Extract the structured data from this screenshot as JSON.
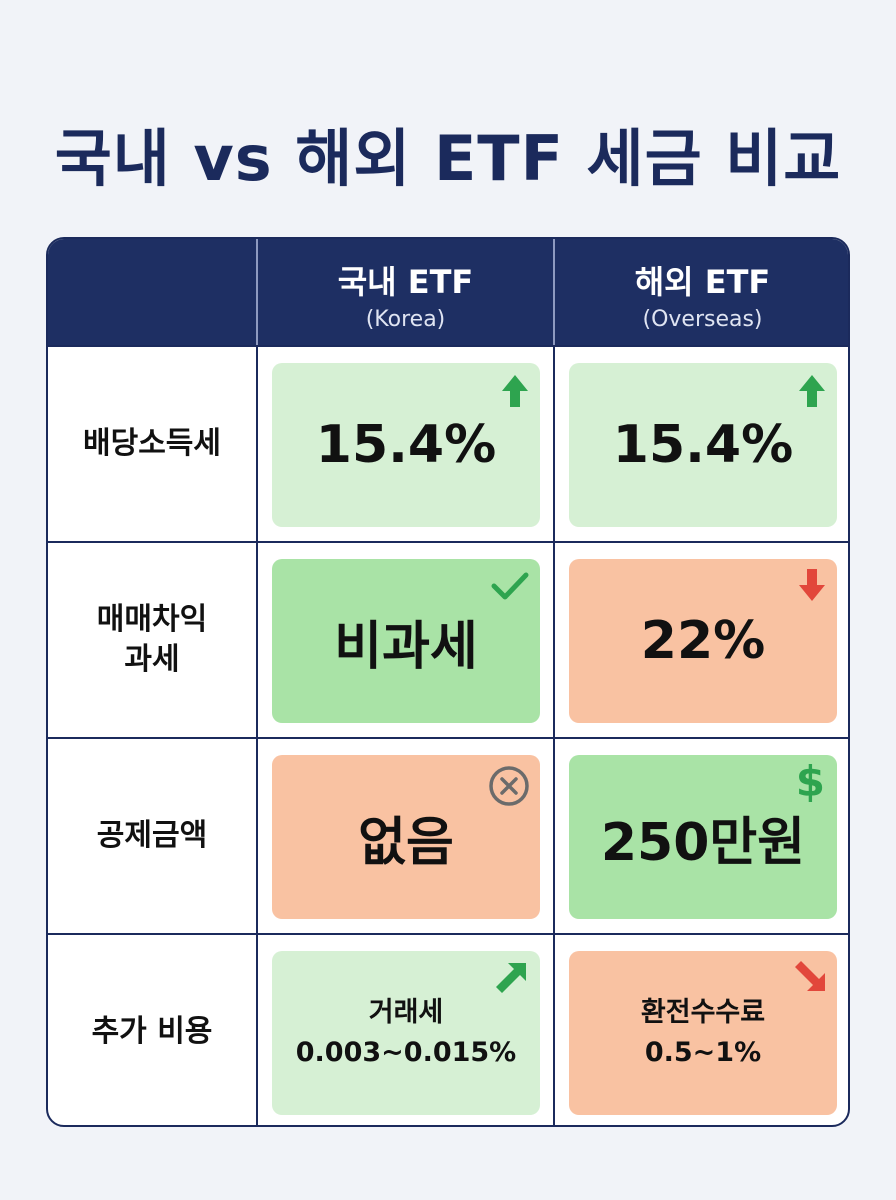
{
  "title": "국내 vs 해외 ETF 세금 비교",
  "columns": [
    {
      "main": "국내 ETF",
      "sub": "(Korea)"
    },
    {
      "main": "해외 ETF",
      "sub": "(Overseas)"
    }
  ],
  "rows": [
    {
      "label": "배당소득세",
      "korea": "15.4%",
      "overseas": "15.4%"
    },
    {
      "label": "매매차익\n과세",
      "korea": "비과세",
      "overseas": "22%"
    },
    {
      "label": "공제금액",
      "korea": "없음",
      "overseas": "250만원"
    },
    {
      "label": "추가 비용",
      "korea_line1": "거래세",
      "korea_line2": "0.003~0.015%",
      "overseas_line1": "환전수수료",
      "overseas_line2": "0.5~1%"
    }
  ],
  "icons": {
    "r1_korea": "arrow-up-icon",
    "r1_overseas": "arrow-up-icon",
    "r2_korea": "check-icon",
    "r2_overseas": "arrow-down-icon",
    "r3_korea": "x-circle-icon",
    "r3_overseas": "dollar-icon",
    "r4_korea": "arrow-up-right-icon",
    "r4_overseas": "arrow-down-right-icon"
  },
  "colors": {
    "navy": "#1e2f63",
    "green": "#2ea44f",
    "red": "#e2473b"
  }
}
